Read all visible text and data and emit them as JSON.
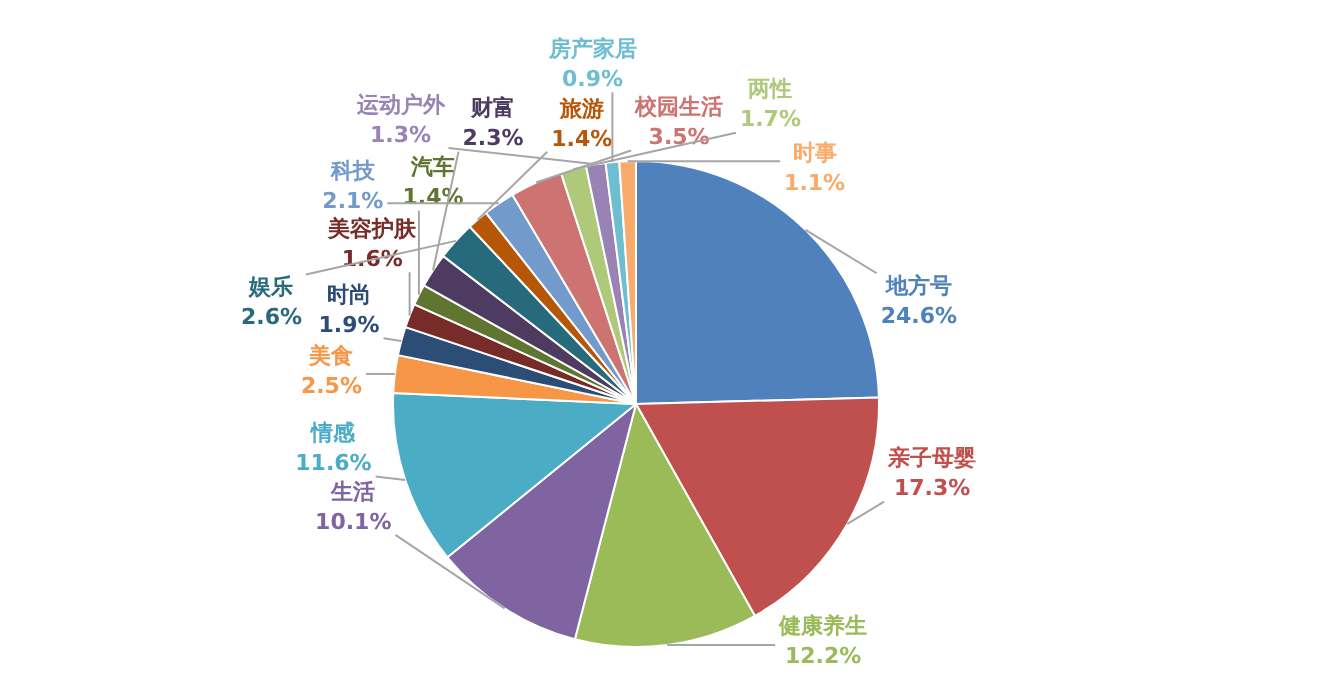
{
  "chart_data": {
    "type": "pie",
    "categories": [
      "地方号",
      "亲子母婴",
      "健康养生",
      "生活",
      "情感",
      "美食",
      "时尚",
      "美容护肤",
      "汽车",
      "财富",
      "娱乐",
      "旅游",
      "科技",
      "校园生活",
      "两性",
      "运动户外",
      "房产家居",
      "时事"
    ],
    "values": [
      24.6,
      17.3,
      12.2,
      10.1,
      11.6,
      2.5,
      1.9,
      1.6,
      1.4,
      2.3,
      2.6,
      1.4,
      2.1,
      3.5,
      1.7,
      1.3,
      0.9,
      1.1
    ],
    "value_labels": [
      "24.6%",
      "17.3%",
      "12.2%",
      "10.1%",
      "11.6%",
      "2.5%",
      "1.9%",
      "1.6%",
      "1.4%",
      "2.3%",
      "2.6%",
      "1.4%",
      "2.1%",
      "3.5%",
      "1.7%",
      "1.3%",
      "0.9%",
      "1.1%"
    ],
    "colors": [
      "#4f81bd",
      "#c0504d",
      "#9bbb59",
      "#8064a2",
      "#4bacc6",
      "#f79646",
      "#2c4d75",
      "#772c2a",
      "#5f7530",
      "#4d3b62",
      "#276a7c",
      "#b65708",
      "#729aca",
      "#cd7371",
      "#afc97a",
      "#9983b5",
      "#6fbdd1",
      "#f9ab6b"
    ],
    "legend": false
  }
}
